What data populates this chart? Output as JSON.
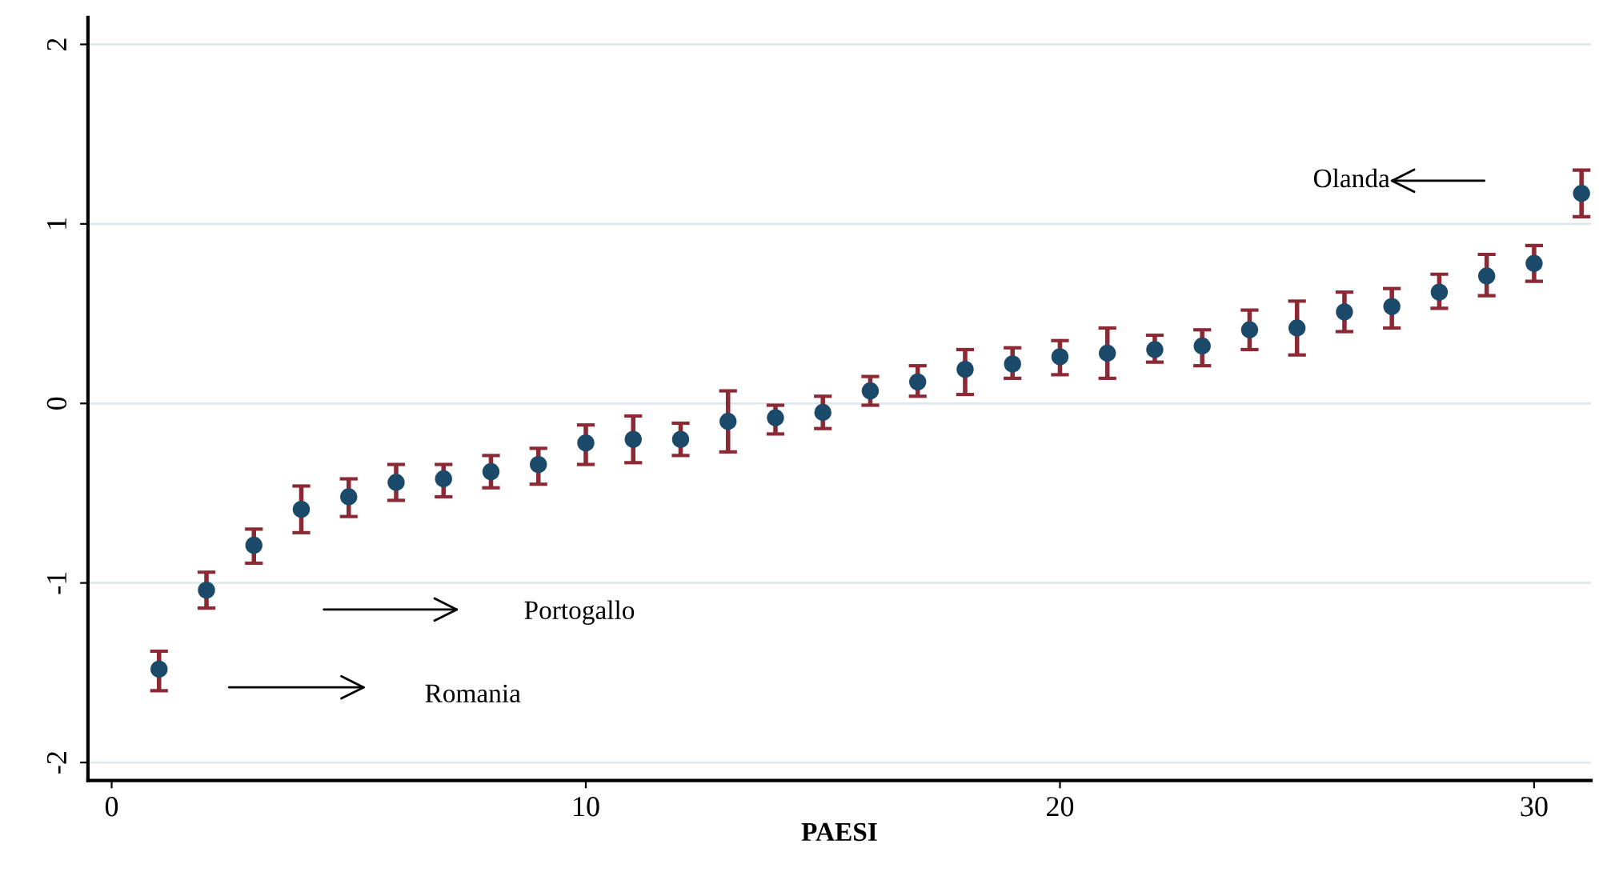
{
  "chart_data": {
    "type": "scatter",
    "xlabel": "PAESI",
    "x": [
      1,
      2,
      3,
      4,
      5,
      6,
      7,
      8,
      9,
      10,
      11,
      12,
      13,
      14,
      15,
      16,
      17,
      18,
      19,
      20,
      21,
      22,
      23,
      24,
      25,
      26,
      27,
      28,
      29,
      30,
      31
    ],
    "series": [
      {
        "color": "#1b4a6b",
        "values": [
          -1.48,
          -1.04,
          -0.79,
          -0.59,
          -0.52,
          -0.44,
          -0.42,
          -0.38,
          -0.34,
          -0.22,
          -0.2,
          -0.2,
          -0.1,
          -0.08,
          -0.05,
          0.07,
          0.12,
          0.19,
          0.22,
          0.26,
          0.28,
          0.3,
          0.32,
          0.41,
          0.42,
          0.51,
          0.54,
          0.62,
          0.71,
          0.78,
          1.17
        ],
        "errors": [
          [
            -1.6,
            -1.38
          ],
          [
            -1.14,
            -0.94
          ],
          [
            -0.89,
            -0.7
          ],
          [
            -0.72,
            -0.46
          ],
          [
            -0.63,
            -0.42
          ],
          [
            -0.54,
            -0.34
          ],
          [
            -0.52,
            -0.34
          ],
          [
            -0.47,
            -0.29
          ],
          [
            -0.45,
            -0.25
          ],
          [
            -0.34,
            -0.12
          ],
          [
            -0.33,
            -0.07
          ],
          [
            -0.29,
            -0.11
          ],
          [
            -0.27,
            0.07
          ],
          [
            -0.17,
            -0.01
          ],
          [
            -0.14,
            0.04
          ],
          [
            -0.01,
            0.15
          ],
          [
            0.04,
            0.21
          ],
          [
            0.05,
            0.3
          ],
          [
            0.14,
            0.31
          ],
          [
            0.16,
            0.35
          ],
          [
            0.14,
            0.42
          ],
          [
            0.23,
            0.38
          ],
          [
            0.21,
            0.41
          ],
          [
            0.3,
            0.52
          ],
          [
            0.27,
            0.57
          ],
          [
            0.4,
            0.62
          ],
          [
            0.42,
            0.64
          ],
          [
            0.53,
            0.72
          ],
          [
            0.6,
            0.83
          ],
          [
            0.68,
            0.88
          ],
          [
            1.04,
            1.3
          ]
        ]
      }
    ],
    "xlim": [
      -0.5,
      31.2
    ],
    "ylim": [
      -2.1,
      2.15
    ],
    "xticks": [
      0,
      10,
      20,
      30
    ],
    "yticks": [
      -2,
      -1,
      0,
      1,
      2
    ],
    "grid": "y",
    "marker": "circle",
    "annotations": [
      "Romania",
      "Portogallo",
      "Olanda"
    ]
  }
}
